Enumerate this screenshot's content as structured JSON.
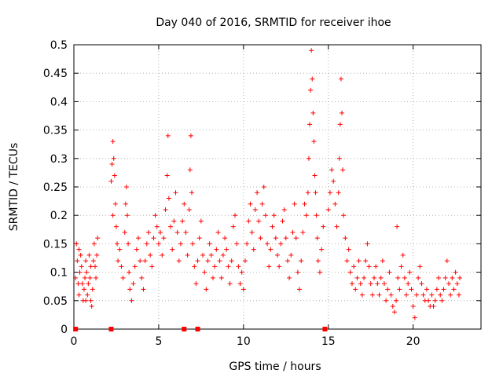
{
  "chart_data": {
    "type": "scatter",
    "title": "Day 040 of 2016, SRMTID for receiver ihoe",
    "xlabel": "GPS time / hours",
    "ylabel": "SRMTID / TECUs",
    "xlim": [
      0,
      24
    ],
    "ylim": [
      0,
      0.5
    ],
    "xticks": [
      0,
      5,
      10,
      15,
      20
    ],
    "xtick_labels": [
      "0",
      "5",
      "10",
      "15",
      "20"
    ],
    "yticks": [
      0,
      0.05,
      0.1,
      0.15,
      0.2,
      0.25,
      0.3,
      0.35,
      0.4,
      0.45,
      0.5
    ],
    "ytick_labels": [
      "0",
      "0.05",
      "0.1",
      "0.15",
      "0.2",
      "0.25",
      "0.3",
      "0.35",
      "0.4",
      "0.45",
      "0.5"
    ],
    "grid": true,
    "marker": "+",
    "color": "#ff0000",
    "zero_markers_x": [
      0.1,
      2.2,
      6.5,
      7.3,
      14.8
    ],
    "series": [
      {
        "name": "SRMTID",
        "points": [
          [
            0.1,
            0.09
          ],
          [
            0.15,
            0.15
          ],
          [
            0.2,
            0.12
          ],
          [
            0.25,
            0.08
          ],
          [
            0.3,
            0.06
          ],
          [
            0.35,
            0.1
          ],
          [
            0.4,
            0.13
          ],
          [
            0.45,
            0.11
          ],
          [
            0.5,
            0.08
          ],
          [
            0.55,
            0.05
          ],
          [
            0.6,
            0.07
          ],
          [
            0.65,
            0.09
          ],
          [
            0.7,
            0.12
          ],
          [
            0.75,
            0.1
          ],
          [
            0.8,
            0.06
          ],
          [
            0.85,
            0.08
          ],
          [
            0.9,
            0.13
          ],
          [
            0.95,
            0.09
          ],
          [
            1.0,
            0.05
          ],
          [
            1.05,
            0.04
          ],
          [
            1.1,
            0.07
          ],
          [
            1.15,
            0.12
          ],
          [
            1.2,
            0.15
          ],
          [
            1.25,
            0.11
          ],
          [
            1.3,
            0.09
          ],
          [
            1.35,
            0.13
          ],
          [
            1.4,
            0.16
          ],
          [
            0.3,
            0.14
          ],
          [
            0.7,
            0.05
          ],
          [
            1.0,
            0.11
          ],
          [
            2.2,
            0.26
          ],
          [
            2.25,
            0.29
          ],
          [
            2.3,
            0.33
          ],
          [
            2.35,
            0.3
          ],
          [
            2.4,
            0.27
          ],
          [
            2.45,
            0.22
          ],
          [
            2.5,
            0.18
          ],
          [
            2.55,
            0.15
          ],
          [
            2.6,
            0.12
          ],
          [
            2.3,
            0.2
          ],
          [
            2.7,
            0.14
          ],
          [
            2.8,
            0.11
          ],
          [
            2.9,
            0.09
          ],
          [
            3.0,
            0.17
          ],
          [
            3.05,
            0.22
          ],
          [
            3.1,
            0.25
          ],
          [
            3.15,
            0.2
          ],
          [
            3.2,
            0.15
          ],
          [
            3.25,
            0.1
          ],
          [
            3.3,
            0.07
          ],
          [
            3.4,
            0.05
          ],
          [
            3.5,
            0.08
          ],
          [
            3.6,
            0.11
          ],
          [
            3.7,
            0.14
          ],
          [
            3.8,
            0.16
          ],
          [
            3.9,
            0.12
          ],
          [
            4.0,
            0.09
          ],
          [
            4.1,
            0.07
          ],
          [
            4.2,
            0.12
          ],
          [
            4.3,
            0.15
          ],
          [
            4.4,
            0.17
          ],
          [
            4.5,
            0.13
          ],
          [
            4.6,
            0.11
          ],
          [
            4.7,
            0.16
          ],
          [
            4.8,
            0.2
          ],
          [
            4.9,
            0.18
          ],
          [
            5.0,
            0.15
          ],
          [
            5.1,
            0.17
          ],
          [
            5.2,
            0.13
          ],
          [
            5.3,
            0.16
          ],
          [
            5.4,
            0.21
          ],
          [
            5.5,
            0.27
          ],
          [
            5.55,
            0.34
          ],
          [
            5.6,
            0.23
          ],
          [
            5.7,
            0.18
          ],
          [
            5.8,
            0.14
          ],
          [
            5.9,
            0.19
          ],
          [
            6.0,
            0.24
          ],
          [
            6.1,
            0.17
          ],
          [
            6.2,
            0.12
          ],
          [
            6.3,
            0.15
          ],
          [
            6.4,
            0.19
          ],
          [
            6.5,
            0.22
          ],
          [
            6.6,
            0.17
          ],
          [
            6.7,
            0.13
          ],
          [
            6.8,
            0.21
          ],
          [
            6.85,
            0.28
          ],
          [
            6.9,
            0.34
          ],
          [
            6.95,
            0.24
          ],
          [
            7.0,
            0.15
          ],
          [
            7.1,
            0.11
          ],
          [
            7.2,
            0.08
          ],
          [
            7.3,
            0.12
          ],
          [
            7.4,
            0.16
          ],
          [
            7.5,
            0.19
          ],
          [
            7.6,
            0.13
          ],
          [
            7.7,
            0.1
          ],
          [
            7.8,
            0.07
          ],
          [
            7.9,
            0.12
          ],
          [
            8.0,
            0.15
          ],
          [
            8.1,
            0.13
          ],
          [
            8.2,
            0.09
          ],
          [
            8.3,
            0.11
          ],
          [
            8.4,
            0.14
          ],
          [
            8.5,
            0.17
          ],
          [
            8.6,
            0.12
          ],
          [
            8.7,
            0.09
          ],
          [
            8.8,
            0.13
          ],
          [
            8.9,
            0.16
          ],
          [
            9.0,
            0.14
          ],
          [
            9.1,
            0.11
          ],
          [
            9.2,
            0.08
          ],
          [
            9.3,
            0.12
          ],
          [
            9.4,
            0.18
          ],
          [
            9.5,
            0.2
          ],
          [
            9.6,
            0.15
          ],
          [
            9.7,
            0.11
          ],
          [
            9.8,
            0.08
          ],
          [
            9.9,
            0.1
          ],
          [
            10.0,
            0.07
          ],
          [
            10.1,
            0.12
          ],
          [
            10.2,
            0.15
          ],
          [
            10.3,
            0.19
          ],
          [
            10.4,
            0.22
          ],
          [
            10.5,
            0.17
          ],
          [
            10.6,
            0.14
          ],
          [
            10.7,
            0.21
          ],
          [
            10.8,
            0.24
          ],
          [
            10.9,
            0.19
          ],
          [
            11.0,
            0.16
          ],
          [
            11.1,
            0.22
          ],
          [
            11.2,
            0.25
          ],
          [
            11.3,
            0.2
          ],
          [
            11.4,
            0.15
          ],
          [
            11.5,
            0.11
          ],
          [
            11.6,
            0.14
          ],
          [
            11.7,
            0.18
          ],
          [
            11.8,
            0.2
          ],
          [
            11.9,
            0.16
          ],
          [
            12.0,
            0.13
          ],
          [
            12.1,
            0.11
          ],
          [
            12.2,
            0.15
          ],
          [
            12.3,
            0.19
          ],
          [
            12.4,
            0.21
          ],
          [
            12.5,
            0.16
          ],
          [
            12.6,
            0.12
          ],
          [
            12.7,
            0.09
          ],
          [
            12.8,
            0.13
          ],
          [
            12.9,
            0.17
          ],
          [
            13.0,
            0.22
          ],
          [
            13.1,
            0.16
          ],
          [
            13.2,
            0.1
          ],
          [
            13.3,
            0.07
          ],
          [
            13.4,
            0.12
          ],
          [
            13.5,
            0.17
          ],
          [
            13.6,
            0.22
          ],
          [
            13.7,
            0.2
          ],
          [
            13.8,
            0.24
          ],
          [
            13.85,
            0.3
          ],
          [
            13.9,
            0.36
          ],
          [
            13.95,
            0.42
          ],
          [
            14.0,
            0.49
          ],
          [
            14.05,
            0.44
          ],
          [
            14.1,
            0.38
          ],
          [
            14.15,
            0.33
          ],
          [
            14.2,
            0.27
          ],
          [
            14.25,
            0.24
          ],
          [
            14.3,
            0.2
          ],
          [
            14.35,
            0.16
          ],
          [
            14.4,
            0.12
          ],
          [
            14.5,
            0.1
          ],
          [
            14.6,
            0.14
          ],
          [
            14.7,
            0.18
          ],
          [
            15.0,
            0.21
          ],
          [
            15.1,
            0.24
          ],
          [
            15.2,
            0.28
          ],
          [
            15.3,
            0.26
          ],
          [
            15.4,
            0.22
          ],
          [
            15.5,
            0.18
          ],
          [
            15.6,
            0.24
          ],
          [
            15.65,
            0.3
          ],
          [
            15.7,
            0.36
          ],
          [
            15.75,
            0.44
          ],
          [
            15.8,
            0.38
          ],
          [
            15.85,
            0.28
          ],
          [
            15.9,
            0.2
          ],
          [
            16.0,
            0.16
          ],
          [
            16.1,
            0.12
          ],
          [
            16.2,
            0.14
          ],
          [
            16.3,
            0.1
          ],
          [
            16.4,
            0.08
          ],
          [
            16.5,
            0.11
          ],
          [
            16.6,
            0.07
          ],
          [
            16.7,
            0.09
          ],
          [
            16.8,
            0.12
          ],
          [
            16.9,
            0.08
          ],
          [
            17.0,
            0.06
          ],
          [
            17.1,
            0.09
          ],
          [
            17.2,
            0.12
          ],
          [
            17.3,
            0.15
          ],
          [
            17.4,
            0.11
          ],
          [
            17.5,
            0.08
          ],
          [
            17.6,
            0.06
          ],
          [
            17.7,
            0.09
          ],
          [
            17.8,
            0.11
          ],
          [
            17.9,
            0.08
          ],
          [
            18.0,
            0.06
          ],
          [
            18.1,
            0.09
          ],
          [
            18.2,
            0.12
          ],
          [
            18.3,
            0.08
          ],
          [
            18.4,
            0.05
          ],
          [
            18.5,
            0.07
          ],
          [
            18.6,
            0.1
          ],
          [
            18.7,
            0.06
          ],
          [
            18.8,
            0.04
          ],
          [
            18.9,
            0.03
          ],
          [
            19.0,
            0.05
          ],
          [
            19.05,
            0.18
          ],
          [
            19.1,
            0.09
          ],
          [
            19.2,
            0.07
          ],
          [
            19.3,
            0.11
          ],
          [
            19.4,
            0.13
          ],
          [
            19.5,
            0.09
          ],
          [
            19.6,
            0.06
          ],
          [
            19.7,
            0.08
          ],
          [
            19.8,
            0.1
          ],
          [
            19.9,
            0.07
          ],
          [
            20.0,
            0.04
          ],
          [
            20.1,
            0.02
          ],
          [
            20.2,
            0.06
          ],
          [
            20.3,
            0.09
          ],
          [
            20.4,
            0.11
          ],
          [
            20.5,
            0.08
          ],
          [
            20.6,
            0.06
          ],
          [
            20.7,
            0.05
          ],
          [
            20.8,
            0.07
          ],
          [
            20.9,
            0.05
          ],
          [
            21.0,
            0.04
          ],
          [
            21.1,
            0.06
          ],
          [
            21.2,
            0.04
          ],
          [
            21.3,
            0.05
          ],
          [
            21.4,
            0.07
          ],
          [
            21.5,
            0.09
          ],
          [
            21.6,
            0.06
          ],
          [
            21.7,
            0.05
          ],
          [
            21.8,
            0.07
          ],
          [
            21.9,
            0.09
          ],
          [
            22.0,
            0.12
          ],
          [
            22.1,
            0.08
          ],
          [
            22.2,
            0.06
          ],
          [
            22.3,
            0.09
          ],
          [
            22.4,
            0.07
          ],
          [
            22.5,
            0.1
          ],
          [
            22.6,
            0.08
          ],
          [
            22.7,
            0.06
          ],
          [
            22.75,
            0.09
          ]
        ]
      }
    ]
  }
}
